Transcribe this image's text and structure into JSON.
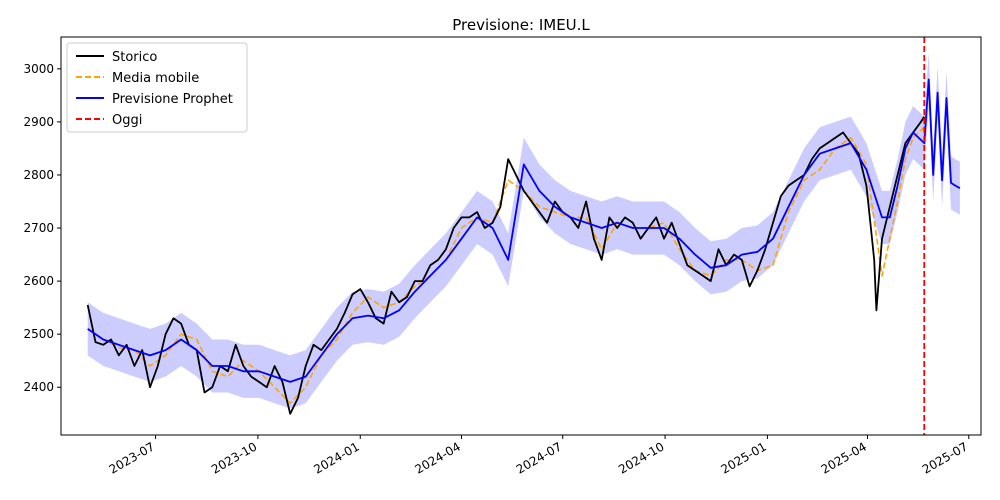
{
  "chart_data": {
    "type": "line",
    "title": "Previsione: IMEU.L",
    "xlabel": "",
    "ylabel": "",
    "x_axis_type": "date",
    "xlim": [
      "2023-04-07",
      "2025-07-12"
    ],
    "ylim": [
      2310,
      3060
    ],
    "x_ticks": [
      "2023-07-01",
      "2023-10-01",
      "2024-01-01",
      "2024-04-01",
      "2024-07-01",
      "2024-10-01",
      "2025-01-01",
      "2025-04-01",
      "2025-07-01"
    ],
    "x_tick_labels": [
      "2023-07",
      "2023-10",
      "2024-01",
      "2024-04",
      "2024-07",
      "2024-10",
      "2025-01",
      "2025-04",
      "2025-07"
    ],
    "y_ticks": [
      2400,
      2500,
      2600,
      2700,
      2800,
      2900,
      3000
    ],
    "y_tick_labels": [
      "2400",
      "2500",
      "2600",
      "2700",
      "2800",
      "2900",
      "3000"
    ],
    "grid": false,
    "legend_position": "top-left",
    "colors": {
      "storico": "#000000",
      "media_mobile": "#ffa500",
      "prophet": "#0000ff",
      "band": "#0000ff",
      "oggi": "#ff0000"
    },
    "legend": [
      "Storico",
      "Media mobile",
      "Previsione Prophet",
      "Oggi"
    ],
    "series": [
      {
        "name": "Storico",
        "style": "solid",
        "color": "#000000",
        "x": [
          "2023-05-01",
          "2023-05-08",
          "2023-05-15",
          "2023-05-22",
          "2023-05-29",
          "2023-06-05",
          "2023-06-12",
          "2023-06-19",
          "2023-06-26",
          "2023-07-03",
          "2023-07-10",
          "2023-07-17",
          "2023-07-24",
          "2023-07-31",
          "2023-08-07",
          "2023-08-14",
          "2023-08-21",
          "2023-08-28",
          "2023-09-04",
          "2023-09-11",
          "2023-09-18",
          "2023-09-25",
          "2023-10-02",
          "2023-10-09",
          "2023-10-16",
          "2023-10-23",
          "2023-10-30",
          "2023-11-06",
          "2023-11-13",
          "2023-11-20",
          "2023-11-27",
          "2023-12-04",
          "2023-12-11",
          "2023-12-18",
          "2023-12-25",
          "2024-01-01",
          "2024-01-08",
          "2024-01-15",
          "2024-01-22",
          "2024-01-29",
          "2024-02-05",
          "2024-02-12",
          "2024-02-19",
          "2024-02-26",
          "2024-03-04",
          "2024-03-11",
          "2024-03-18",
          "2024-03-25",
          "2024-04-01",
          "2024-04-08",
          "2024-04-15",
          "2024-04-22",
          "2024-04-29",
          "2024-05-06",
          "2024-05-13",
          "2024-05-20",
          "2024-05-27",
          "2024-06-03",
          "2024-06-10",
          "2024-06-17",
          "2024-06-24",
          "2024-07-01",
          "2024-07-08",
          "2024-07-15",
          "2024-07-22",
          "2024-07-29",
          "2024-08-05",
          "2024-08-12",
          "2024-08-19",
          "2024-08-26",
          "2024-09-02",
          "2024-09-09",
          "2024-09-16",
          "2024-09-23",
          "2024-09-30",
          "2024-10-07",
          "2024-10-14",
          "2024-10-21",
          "2024-10-28",
          "2024-11-04",
          "2024-11-11",
          "2024-11-18",
          "2024-11-25",
          "2024-12-02",
          "2024-12-09",
          "2024-12-16",
          "2024-12-23",
          "2024-12-30",
          "2025-01-06",
          "2025-01-13",
          "2025-01-20",
          "2025-01-27",
          "2025-02-03",
          "2025-02-10",
          "2025-02-17",
          "2025-02-24",
          "2025-03-03",
          "2025-03-10",
          "2025-03-17",
          "2025-03-24",
          "2025-03-31",
          "2025-04-03",
          "2025-04-07",
          "2025-04-09",
          "2025-04-14",
          "2025-04-21",
          "2025-04-28",
          "2025-05-05",
          "2025-05-12",
          "2025-05-19",
          "2025-05-22"
        ],
        "y": [
          2555,
          2485,
          2480,
          2490,
          2460,
          2480,
          2440,
          2470,
          2400,
          2440,
          2500,
          2530,
          2520,
          2480,
          2470,
          2390,
          2400,
          2440,
          2430,
          2480,
          2440,
          2420,
          2410,
          2400,
          2440,
          2410,
          2350,
          2380,
          2440,
          2480,
          2470,
          2490,
          2510,
          2540,
          2575,
          2585,
          2560,
          2530,
          2520,
          2580,
          2560,
          2570,
          2600,
          2600,
          2630,
          2640,
          2660,
          2700,
          2720,
          2720,
          2730,
          2700,
          2710,
          2740,
          2830,
          2800,
          2770,
          2750,
          2730,
          2710,
          2750,
          2730,
          2720,
          2700,
          2750,
          2680,
          2640,
          2720,
          2700,
          2720,
          2710,
          2680,
          2700,
          2720,
          2680,
          2710,
          2670,
          2630,
          2620,
          2610,
          2600,
          2660,
          2630,
          2650,
          2640,
          2590,
          2620,
          2660,
          2710,
          2760,
          2780,
          2790,
          2800,
          2830,
          2850,
          2860,
          2870,
          2880,
          2860,
          2840,
          2780,
          2720,
          2640,
          2545,
          2680,
          2740,
          2800,
          2860,
          2880,
          2900,
          2910
        ]
      },
      {
        "name": "Media mobile",
        "style": "dashed",
        "color": "#ffa500",
        "x": [
          "2023-05-01",
          "2023-05-15",
          "2023-05-29",
          "2023-06-12",
          "2023-06-26",
          "2023-07-10",
          "2023-07-24",
          "2023-08-07",
          "2023-08-21",
          "2023-09-04",
          "2023-09-18",
          "2023-10-02",
          "2023-10-16",
          "2023-10-30",
          "2023-11-13",
          "2023-11-27",
          "2023-12-11",
          "2023-12-25",
          "2024-01-08",
          "2024-01-22",
          "2024-02-05",
          "2024-02-19",
          "2024-03-04",
          "2024-03-18",
          "2024-04-01",
          "2024-04-15",
          "2024-04-29",
          "2024-05-13",
          "2024-05-27",
          "2024-06-10",
          "2024-06-24",
          "2024-07-08",
          "2024-07-22",
          "2024-08-05",
          "2024-08-19",
          "2024-09-02",
          "2024-09-16",
          "2024-09-30",
          "2024-10-14",
          "2024-10-28",
          "2024-11-11",
          "2024-11-25",
          "2024-12-09",
          "2024-12-23",
          "2025-01-06",
          "2025-01-20",
          "2025-02-03",
          "2025-02-17",
          "2025-03-03",
          "2025-03-17",
          "2025-03-31",
          "2025-04-14",
          "2025-04-21",
          "2025-04-28",
          "2025-05-05",
          "2025-05-12",
          "2025-05-22"
        ],
        "y": [
          2510,
          2490,
          2475,
          2470,
          2440,
          2460,
          2500,
          2490,
          2430,
          2420,
          2450,
          2430,
          2400,
          2370,
          2400,
          2460,
          2490,
          2540,
          2570,
          2550,
          2560,
          2590,
          2610,
          2640,
          2700,
          2720,
          2710,
          2790,
          2770,
          2740,
          2730,
          2720,
          2720,
          2660,
          2710,
          2700,
          2700,
          2710,
          2660,
          2620,
          2610,
          2640,
          2640,
          2620,
          2630,
          2730,
          2790,
          2810,
          2850,
          2870,
          2820,
          2610,
          2680,
          2750,
          2830,
          2870,
          2890
        ]
      },
      {
        "name": "Previsione Prophet",
        "style": "solid",
        "color": "#0000ff",
        "x": [
          "2023-05-01",
          "2023-05-15",
          "2023-05-29",
          "2023-06-12",
          "2023-06-26",
          "2023-07-10",
          "2023-07-24",
          "2023-08-07",
          "2023-08-21",
          "2023-09-04",
          "2023-09-18",
          "2023-10-02",
          "2023-10-16",
          "2023-10-30",
          "2023-11-13",
          "2023-11-27",
          "2023-12-11",
          "2023-12-25",
          "2024-01-08",
          "2024-01-22",
          "2024-02-05",
          "2024-02-19",
          "2024-03-04",
          "2024-03-18",
          "2024-04-01",
          "2024-04-15",
          "2024-04-29",
          "2024-05-13",
          "2024-05-27",
          "2024-06-10",
          "2024-06-24",
          "2024-07-08",
          "2024-07-22",
          "2024-08-05",
          "2024-08-19",
          "2024-09-02",
          "2024-09-16",
          "2024-09-30",
          "2024-10-14",
          "2024-10-28",
          "2024-11-11",
          "2024-11-25",
          "2024-12-09",
          "2024-12-23",
          "2025-01-06",
          "2025-01-20",
          "2025-02-03",
          "2025-02-17",
          "2025-03-03",
          "2025-03-17",
          "2025-03-31",
          "2025-04-14",
          "2025-04-21",
          "2025-04-28",
          "2025-05-05",
          "2025-05-12",
          "2025-05-22",
          "2025-05-26",
          "2025-05-30",
          "2025-06-03",
          "2025-06-07",
          "2025-06-11",
          "2025-06-15",
          "2025-06-19",
          "2025-06-23"
        ],
        "y": [
          2510,
          2490,
          2480,
          2470,
          2460,
          2470,
          2490,
          2470,
          2440,
          2440,
          2430,
          2430,
          2420,
          2410,
          2420,
          2460,
          2500,
          2530,
          2535,
          2530,
          2545,
          2580,
          2610,
          2640,
          2680,
          2720,
          2700,
          2640,
          2820,
          2770,
          2740,
          2720,
          2710,
          2700,
          2710,
          2700,
          2700,
          2700,
          2680,
          2650,
          2625,
          2630,
          2650,
          2655,
          2680,
          2740,
          2800,
          2840,
          2850,
          2860,
          2810,
          2720,
          2720,
          2780,
          2850,
          2880,
          2860,
          2980,
          2800,
          2955,
          2790,
          2945,
          2785,
          2780,
          2775
        ]
      }
    ],
    "confidence_band": {
      "x": [
        "2023-05-01",
        "2023-05-15",
        "2023-05-29",
        "2023-06-12",
        "2023-06-26",
        "2023-07-10",
        "2023-07-24",
        "2023-08-07",
        "2023-08-21",
        "2023-09-04",
        "2023-09-18",
        "2023-10-02",
        "2023-10-16",
        "2023-10-30",
        "2023-11-13",
        "2023-11-27",
        "2023-12-11",
        "2023-12-25",
        "2024-01-08",
        "2024-01-22",
        "2024-02-05",
        "2024-02-19",
        "2024-03-04",
        "2024-03-18",
        "2024-04-01",
        "2024-04-15",
        "2024-04-29",
        "2024-05-13",
        "2024-05-27",
        "2024-06-10",
        "2024-06-24",
        "2024-07-08",
        "2024-07-22",
        "2024-08-05",
        "2024-08-19",
        "2024-09-02",
        "2024-09-16",
        "2024-09-30",
        "2024-10-14",
        "2024-10-28",
        "2024-11-11",
        "2024-11-25",
        "2024-12-09",
        "2024-12-23",
        "2025-01-06",
        "2025-01-20",
        "2025-02-03",
        "2025-02-17",
        "2025-03-03",
        "2025-03-17",
        "2025-03-31",
        "2025-04-14",
        "2025-04-21",
        "2025-04-28",
        "2025-05-05",
        "2025-05-12",
        "2025-05-22",
        "2025-05-26",
        "2025-05-30",
        "2025-06-03",
        "2025-06-07",
        "2025-06-11",
        "2025-06-15",
        "2025-06-19",
        "2025-06-23"
      ],
      "upper": [
        2560,
        2540,
        2530,
        2520,
        2510,
        2520,
        2540,
        2520,
        2490,
        2490,
        2480,
        2480,
        2470,
        2460,
        2470,
        2510,
        2550,
        2580,
        2585,
        2580,
        2595,
        2630,
        2660,
        2690,
        2730,
        2770,
        2750,
        2690,
        2870,
        2820,
        2790,
        2770,
        2760,
        2750,
        2760,
        2750,
        2750,
        2750,
        2730,
        2700,
        2675,
        2680,
        2700,
        2705,
        2730,
        2790,
        2850,
        2890,
        2900,
        2910,
        2860,
        2770,
        2770,
        2830,
        2900,
        2930,
        2910,
        3030,
        2850,
        3005,
        2840,
        2995,
        2835,
        2830,
        2825
      ],
      "lower": [
        2460,
        2440,
        2430,
        2420,
        2410,
        2420,
        2440,
        2420,
        2390,
        2390,
        2380,
        2380,
        2370,
        2360,
        2370,
        2410,
        2450,
        2480,
        2485,
        2480,
        2495,
        2530,
        2560,
        2590,
        2630,
        2670,
        2650,
        2590,
        2770,
        2720,
        2690,
        2670,
        2660,
        2650,
        2660,
        2650,
        2650,
        2650,
        2630,
        2600,
        2575,
        2580,
        2600,
        2605,
        2630,
        2690,
        2750,
        2790,
        2800,
        2810,
        2760,
        2670,
        2670,
        2730,
        2800,
        2830,
        2810,
        2930,
        2750,
        2905,
        2740,
        2895,
        2735,
        2730,
        2725
      ]
    },
    "vertical_line": {
      "name": "Oggi",
      "x": "2025-05-22",
      "style": "dashed",
      "color": "#ff0000"
    }
  }
}
